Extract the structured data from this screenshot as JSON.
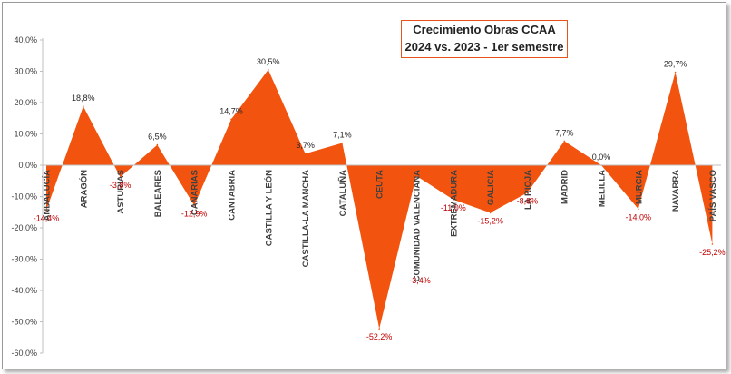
{
  "chart_data": {
    "type": "area",
    "title_line1": "Crecimiento Obras CCAA",
    "title_line2": "2024 vs. 2023 - 1er semestre",
    "categories": [
      "ANDALUCÍA",
      "ARAGÓN",
      "ASTURIAS",
      "BALEARES",
      "CANARIAS",
      "CANTABRIA",
      "CASTILLA Y LEÓN",
      "CASTILLA-LA MANCHA",
      "CATALUÑA",
      "CEUTA",
      "COMUNIDAD VALENCIANA",
      "EXTREMADURA",
      "GALICIA",
      "LA RIOJA",
      "MADRID",
      "MELILLA",
      "MURCIA",
      "NAVARRA",
      "PAÍS VASCO"
    ],
    "values": [
      -14.4,
      18.8,
      -3.8,
      6.5,
      -12.9,
      14.7,
      30.5,
      3.7,
      7.1,
      -52.2,
      -3.4,
      -11.0,
      -15.2,
      -8.8,
      7.7,
      0.0,
      -14.0,
      29.7,
      -25.2
    ],
    "value_labels": [
      "-14,4%",
      "18,8%",
      "-3,8%",
      "6,5%",
      "-12,9%",
      "14,7%",
      "30,5%",
      "3,7%",
      "7,1%",
      "-52,2%",
      "-3,4%",
      "-11,0%",
      "-15,2%",
      "-8,8%",
      "7,7%",
      "0,0%",
      "-14,0%",
      "29,7%",
      "-25,2%"
    ],
    "y_ticks": [
      "40,0%",
      "30,0%",
      "20,0%",
      "10,0%",
      "0,0%",
      "-10,0%",
      "-20,0%",
      "-30,0%",
      "-40,0%",
      "-50,0%",
      "-60,0%"
    ],
    "ylim": [
      -60,
      40
    ],
    "grid": false,
    "fill_color": "#F25410",
    "positive_label_color": "#262626",
    "negative_label_color": "#C00000"
  }
}
